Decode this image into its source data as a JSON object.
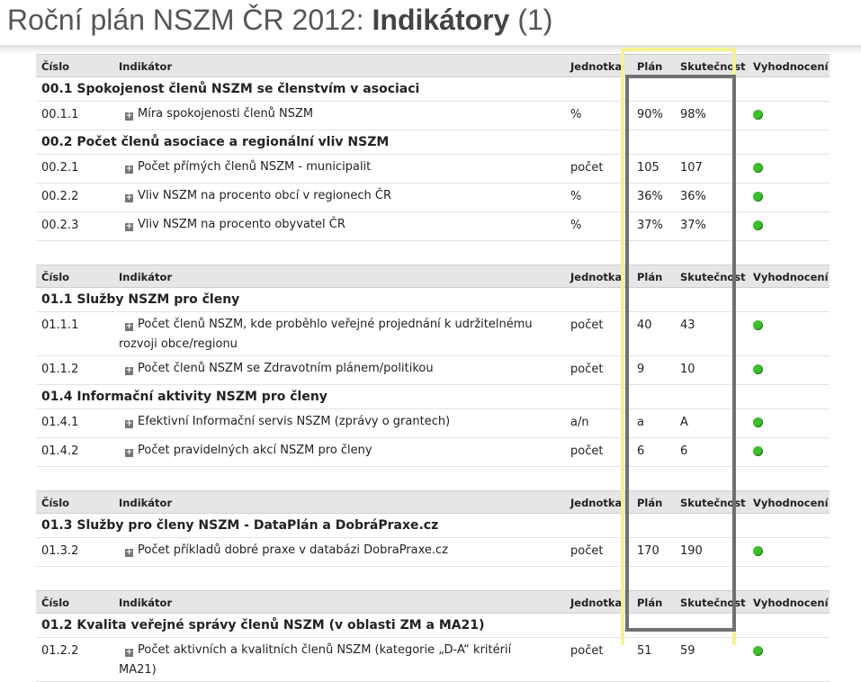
{
  "title": {
    "prefix": "Roční plán NSZM ČR 2012: ",
    "bold": "Indikátory",
    "suffix": " (1)"
  },
  "headers": {
    "number": "Číslo",
    "indicator": "Indikátor",
    "unit": "Jednotka",
    "plan": "Plán",
    "actual": "Skutečnost",
    "evaluation": "Vyhodnocení"
  },
  "tables": [
    {
      "groups": [
        {
          "title": "00.1 Spokojenost členů NSZM se členstvím v asociaci",
          "rows": [
            {
              "num": "00.1.1",
              "indicator": "Míra spokojenosti členů NSZM",
              "unit": "%",
              "plan": "90%",
              "actual": "98%"
            }
          ]
        },
        {
          "title": "00.2 Počet členů asociace a regionální vliv NSZM",
          "rows": [
            {
              "num": "00.2.1",
              "indicator": "Počet přímých členů NSZM - municipalit",
              "unit": "počet",
              "plan": "105",
              "actual": "107"
            },
            {
              "num": "00.2.2",
              "indicator": "Vliv NSZM na procento obcí v regionech ČR",
              "unit": "%",
              "plan": "36%",
              "actual": "36%"
            },
            {
              "num": "00.2.3",
              "indicator": "Vliv NSZM na procento obyvatel ČR",
              "unit": "%",
              "plan": "37%",
              "actual": "37%"
            }
          ]
        }
      ]
    },
    {
      "groups": [
        {
          "title": "01.1 Služby NSZM pro členy",
          "rows": [
            {
              "num": "01.1.1",
              "indicator": "Počet členů NSZM, kde proběhlo veřejné projednání k udržitelnému rozvoji obce/regionu",
              "unit": "počet",
              "plan": "40",
              "actual": "43",
              "tall": true
            },
            {
              "num": "01.1.2",
              "indicator": "Počet členů NSZM se Zdravotním plánem/politikou",
              "unit": "počet",
              "plan": "9",
              "actual": "10"
            }
          ]
        },
        {
          "title": "01.4 Informační aktivity NSZM pro členy",
          "rows": [
            {
              "num": "01.4.1",
              "indicator": "Efektivní Informační servis NSZM (zprávy o grantech)",
              "unit": "a/n",
              "plan": "a",
              "actual": "A"
            },
            {
              "num": "01.4.2",
              "indicator": "Počet pravidelných akcí NSZM pro členy",
              "unit": "počet",
              "plan": "6",
              "actual": "6"
            }
          ]
        }
      ]
    },
    {
      "groups": [
        {
          "title": "01.3 Služby pro členy NSZM - DataPlán a DobráPraxe.cz",
          "rows": [
            {
              "num": "01.3.2",
              "indicator": "Počet příkladů dobré praxe v databázi DobraPraxe.cz",
              "unit": "počet",
              "plan": "170",
              "actual": "190"
            }
          ]
        }
      ]
    },
    {
      "groups": [
        {
          "title": "01.2 Kvalita veřejné správy členů NSZM (v oblasti ZM a MA21)",
          "rows": [
            {
              "num": "01.2.2",
              "indicator": "Počet aktivních a kvalitních členů NSZM (kategorie „D-A“ kritérií MA21)",
              "unit": "počet",
              "plan": "51",
              "actual": "59",
              "tall": true
            }
          ]
        }
      ]
    }
  ],
  "colors": {
    "evaluation_dot": "#3cbf2a",
    "highlight_yellow": "#f4f290",
    "highlight_gray": "#707070"
  }
}
